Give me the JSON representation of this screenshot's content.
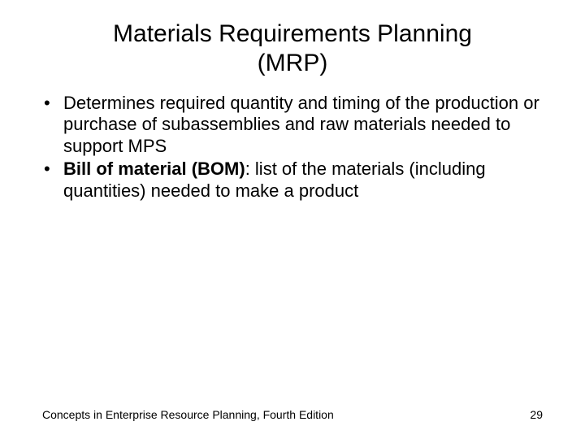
{
  "slide": {
    "title_line1": "Materials Requirements Planning",
    "title_line2": "(MRP)",
    "bullets": [
      {
        "bold_prefix": "",
        "text": "Determines required quantity and timing of the production or purchase of subassemblies and raw materials needed to support MPS"
      },
      {
        "bold_prefix": "Bill of material (BOM)",
        "text": ": list of the materials (including quantities) needed to make a product"
      }
    ],
    "footer_text": "Concepts in Enterprise Resource Planning, Fourth Edition",
    "page_number": "29"
  },
  "style": {
    "background_color": "#ffffff",
    "text_color": "#000000",
    "title_fontsize": 30,
    "body_fontsize": 22,
    "footer_fontsize": 14,
    "font_family": "Arial"
  }
}
